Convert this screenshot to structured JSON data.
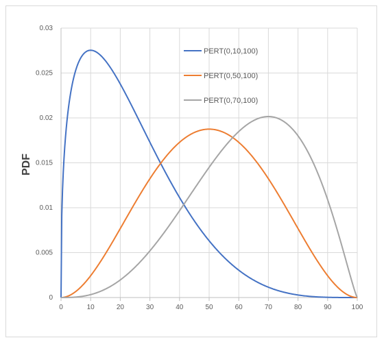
{
  "chart_data": {
    "type": "line",
    "title": "",
    "xlabel": "",
    "ylabel": "PDF",
    "xlim": [
      0,
      100
    ],
    "ylim": [
      0,
      0.03
    ],
    "xticks": [
      0,
      10,
      20,
      30,
      40,
      50,
      60,
      70,
      80,
      90,
      100
    ],
    "yticks": [
      0,
      0.005,
      0.01,
      0.015,
      0.02,
      0.025,
      0.03
    ],
    "xtick_labels": [
      "0",
      "10",
      "20",
      "30",
      "40",
      "50",
      "60",
      "70",
      "80",
      "90",
      "100"
    ],
    "ytick_labels": [
      "0",
      "0.005",
      "0.01",
      "0.015",
      "0.02",
      "0.025",
      "0.03"
    ],
    "grid": true,
    "legend_position": "top-right",
    "x": [
      0,
      1,
      2,
      5,
      10,
      15,
      20,
      25,
      30,
      35,
      40,
      45,
      50,
      55,
      60,
      65,
      70,
      75,
      80,
      85,
      90,
      95,
      100
    ],
    "series": [
      {
        "name": "PERT(0,10,100)",
        "color": "#4472C4",
        "params": {
          "min": 0,
          "mode": 10,
          "max": 100
        },
        "values": [
          0,
          0.0142,
          0.018,
          0.0238,
          0.0275,
          0.0266,
          0.0241,
          0.021,
          0.0177,
          0.0145,
          0.0115,
          0.0089,
          0.0066,
          0.0047,
          0.0032,
          0.0021,
          0.0012,
          0.0006,
          0.0003,
          0.0001,
          3e-05,
          3e-06,
          0
        ]
      },
      {
        "name": "PERT(0,50,100)",
        "color": "#ED7D31",
        "params": {
          "min": 0,
          "mode": 50,
          "max": 100
        },
        "values": [
          0,
          0.0,
          0.0,
          0.0005,
          0.0024,
          0.0052,
          0.0082,
          0.0112,
          0.0139,
          0.0162,
          0.0178,
          0.0186,
          0.0188,
          0.0186,
          0.0178,
          0.0162,
          0.0139,
          0.0112,
          0.0082,
          0.0052,
          0.0024,
          0.0005,
          0
        ]
      },
      {
        "name": "PERT(0,70,100)",
        "color": "#A5A5A5",
        "params": {
          "min": 0,
          "mode": 70,
          "max": 100
        },
        "values": [
          0,
          0.0,
          0.0,
          0.0,
          0.0003,
          0.0009,
          0.0021,
          0.0037,
          0.0057,
          0.0081,
          0.0106,
          0.0131,
          0.0154,
          0.0174,
          0.019,
          0.02,
          0.0202,
          0.0194,
          0.0172,
          0.0135,
          0.0081,
          0.0025,
          0
        ]
      }
    ]
  }
}
